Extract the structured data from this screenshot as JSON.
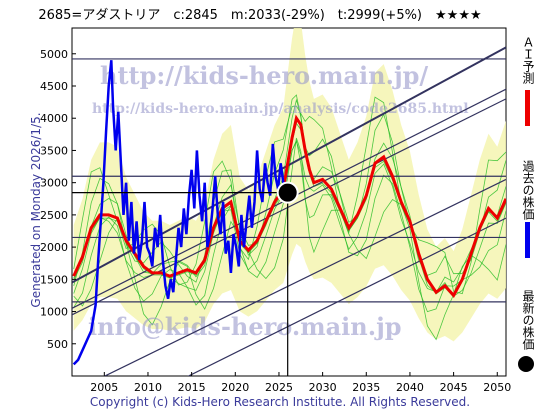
{
  "title": "2685=アダストリア　c:2845　m:2033(-29%)　t:2999(+5%)　★★★★",
  "generated_note": "Generated on Monday 2026/1/5.",
  "copyright": "Copyright (c) Kids-Hero Research Institute. All Rights Reserved.",
  "watermarks": {
    "url": "http://kids-hero.main.jp/",
    "analysis_url": "http://kids-hero.main.jp/analysis/code2685.html",
    "email": "info@kids-hero.main.jp"
  },
  "legend": {
    "ai_forecast": "ＡＩ予測",
    "past_price": "過去の株価",
    "latest_price": "最新の株価"
  },
  "colors": {
    "ai_forecast": "#ee0000",
    "past_price": "#0000ee",
    "latest_marker": "#000000",
    "band_fill": "#f5f5b0",
    "band_lines": "#22bb22",
    "trend_lines": "#33335f"
  },
  "chart_data": {
    "type": "line",
    "x_ticks": [
      2005,
      2010,
      2015,
      2020,
      2025,
      2030,
      2035,
      2040,
      2045,
      2050
    ],
    "y_ticks": [
      500,
      1000,
      1500,
      2000,
      2500,
      3000,
      3500,
      4000,
      4500,
      5000
    ],
    "xlim": [
      2001.3,
      2051.0
    ],
    "ylim": [
      0,
      5400
    ],
    "grid": false,
    "horizontal_levels": [
      4920,
      3100,
      2150,
      1150
    ],
    "trend_channel": [
      {
        "x": [
          2001.3,
          2051.0
        ],
        "y": [
          1050,
          4450
        ]
      },
      {
        "x": [
          2001.3,
          2051.0
        ],
        "y": [
          1450,
          5100
        ]
      },
      {
        "x": [
          2001.3,
          2051.0
        ],
        "y": [
          950,
          4300
        ]
      },
      {
        "x": [
          2001.3,
          2051.0
        ],
        "y": [
          -250,
          3050
        ]
      },
      {
        "x": [
          2001.3,
          2051.0
        ],
        "y": [
          -900,
          2450
        ]
      }
    ],
    "latest_point": {
      "x": 2026.0,
      "y": 2845
    },
    "series": [
      {
        "name": "過去の株価",
        "x": [
          2001.5,
          2002.0,
          2002.5,
          2003.0,
          2003.5,
          2004.0,
          2004.3,
          2004.6,
          2004.9,
          2005.2,
          2005.5,
          2005.8,
          2006.0,
          2006.3,
          2006.6,
          2006.9,
          2007.2,
          2007.5,
          2007.8,
          2008.1,
          2008.4,
          2008.7,
          2009.0,
          2009.3,
          2009.6,
          2009.9,
          2010.2,
          2010.5,
          2010.8,
          2011.1,
          2011.4,
          2011.7,
          2012.0,
          2012.3,
          2012.6,
          2012.9,
          2013.2,
          2013.5,
          2013.8,
          2014.1,
          2014.4,
          2014.7,
          2015.0,
          2015.3,
          2015.6,
          2015.9,
          2016.2,
          2016.5,
          2016.8,
          2017.1,
          2017.4,
          2017.7,
          2018.0,
          2018.3,
          2018.6,
          2018.9,
          2019.2,
          2019.5,
          2019.8,
          2020.1,
          2020.4,
          2020.7,
          2021.0,
          2021.3,
          2021.6,
          2021.9,
          2022.2,
          2022.5,
          2022.8,
          2023.1,
          2023.4,
          2023.7,
          2024.0,
          2024.3,
          2024.6,
          2024.9,
          2025.2,
          2025.5,
          2025.8,
          2026.0
        ],
        "y": [
          180,
          250,
          400,
          550,
          700,
          1100,
          1800,
          2400,
          3000,
          3800,
          4500,
          4900,
          4200,
          3500,
          4100,
          3300,
          2500,
          3000,
          2100,
          2700,
          1900,
          2400,
          1800,
          2100,
          2700,
          2000,
          1900,
          1700,
          2300,
          2000,
          2500,
          1800,
          1400,
          1200,
          1500,
          1300,
          1800,
          2300,
          2000,
          2600,
          2200,
          2800,
          3200,
          2600,
          3500,
          2800,
          2400,
          3000,
          2000,
          2200,
          2600,
          3100,
          2500,
          2200,
          2700,
          1900,
          2100,
          1600,
          2200,
          2000,
          1700,
          2500,
          2000,
          2400,
          2800,
          2300,
          2700,
          3500,
          2900,
          2700,
          3300,
          3000,
          2800,
          3600,
          3100,
          2900,
          3300,
          3000,
          2950,
          2845
        ]
      },
      {
        "name": "ＡＩ予測",
        "x": [
          2001.5,
          2002.5,
          2003.5,
          2004.5,
          2005.5,
          2006.5,
          2007.5,
          2008.5,
          2009.5,
          2010.5,
          2011.5,
          2012.5,
          2013.5,
          2014.5,
          2015.5,
          2016.5,
          2017.5,
          2018.5,
          2019.5,
          2020.5,
          2021.5,
          2022.5,
          2023.5,
          2024.5,
          2025.5,
          2026.5,
          2027.0,
          2027.5,
          2028.0,
          2028.5,
          2029.0,
          2030.0,
          2031.0,
          2032.0,
          2033.0,
          2034.0,
          2035.0,
          2036.0,
          2037.0,
          2038.0,
          2039.0,
          2040.0,
          2041.0,
          2042.0,
          2043.0,
          2044.0,
          2045.0,
          2046.0,
          2047.0,
          2048.0,
          2049.0,
          2050.0,
          2051.0
        ],
        "y": [
          1550,
          1850,
          2300,
          2500,
          2500,
          2450,
          2100,
          1900,
          1700,
          1600,
          1600,
          1550,
          1600,
          1650,
          1600,
          1800,
          2300,
          2600,
          2700,
          2100,
          1950,
          2100,
          2400,
          2700,
          2900,
          3700,
          4000,
          3900,
          3500,
          3200,
          3000,
          3050,
          2900,
          2600,
          2300,
          2500,
          2800,
          3300,
          3400,
          3100,
          2700,
          2400,
          1900,
          1500,
          1300,
          1400,
          1250,
          1500,
          1900,
          2300,
          2600,
          2450,
          2750
        ]
      }
    ]
  }
}
